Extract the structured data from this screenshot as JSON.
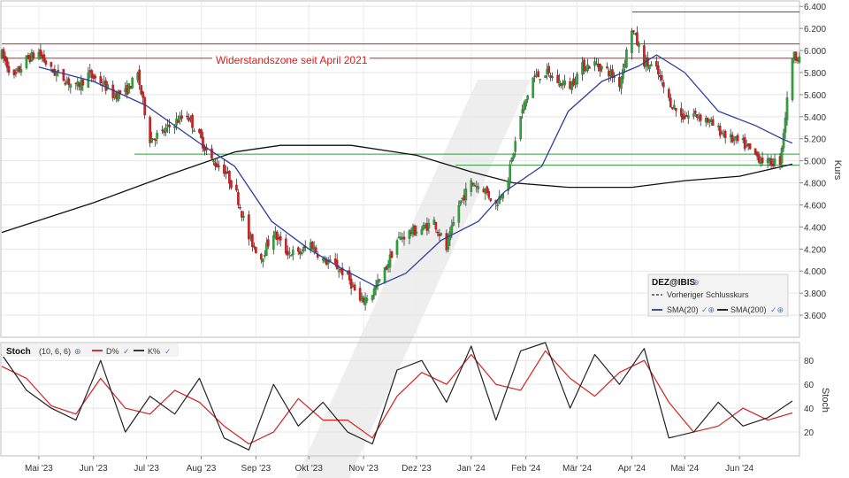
{
  "chart_data": [
    {
      "type": "candlestick",
      "title": "",
      "ylabel": "Kurs",
      "ylim": [
        3.4,
        6.45
      ],
      "yticks": [
        "6.400",
        "6.200",
        "6.000",
        "5.800",
        "5.600",
        "5.400",
        "5.200",
        "5.000",
        "4.800",
        "4.600",
        "4.400",
        "4.200",
        "4.000",
        "3.800",
        "3.600"
      ],
      "x_months": [
        "Mai '23",
        "Jun '23",
        "Jul '23",
        "Aug '23",
        "Sep '23",
        "Okt '23",
        "Nov '23",
        "Dez '23",
        "Jan '24",
        "Feb '24",
        "Mär '24",
        "Apr '24",
        "Mai '24",
        "Jun '24"
      ],
      "x_range": [
        "2023-04-10",
        "2024-07-05"
      ],
      "annotation": "Widerstandszone seit April 2021",
      "horizontal_lines": [
        {
          "y": 6.35,
          "color": "#d42020"
        },
        {
          "y": 6.06,
          "color": "#d42020"
        },
        {
          "y": 5.93,
          "color": "#d42020"
        },
        {
          "y": 5.06,
          "color": "#2e9a3a"
        },
        {
          "y": 4.96,
          "color": "#2e9a3a"
        }
      ],
      "legend": {
        "symbol": "DEZ@IBIS",
        "items": [
          "Vorheriger Schlusskurs",
          "SMA(20)",
          "SMA(200)"
        ]
      },
      "closes": [
        [
          "2023-04-10",
          5.96
        ],
        [
          "2023-04-17",
          5.75
        ],
        [
          "2023-04-24",
          5.92
        ],
        [
          "2023-05-01",
          5.98
        ],
        [
          "2023-05-08",
          5.82
        ],
        [
          "2023-05-15",
          5.75
        ],
        [
          "2023-05-22",
          5.66
        ],
        [
          "2023-05-29",
          5.78
        ],
        [
          "2023-06-05",
          5.72
        ],
        [
          "2023-06-12",
          5.6
        ],
        [
          "2023-06-19",
          5.62
        ],
        [
          "2023-06-26",
          5.78
        ],
        [
          "2023-07-03",
          5.2
        ],
        [
          "2023-07-10",
          5.25
        ],
        [
          "2023-07-17",
          5.35
        ],
        [
          "2023-07-24",
          5.42
        ],
        [
          "2023-07-31",
          5.22
        ],
        [
          "2023-08-07",
          5.0
        ],
        [
          "2023-08-14",
          4.92
        ],
        [
          "2023-08-21",
          4.7
        ],
        [
          "2023-08-28",
          4.3
        ],
        [
          "2023-09-04",
          4.12
        ],
        [
          "2023-09-11",
          4.35
        ],
        [
          "2023-09-18",
          4.18
        ],
        [
          "2023-09-25",
          4.15
        ],
        [
          "2023-10-02",
          4.25
        ],
        [
          "2023-10-09",
          4.1
        ],
        [
          "2023-10-16",
          4.05
        ],
        [
          "2023-10-23",
          3.95
        ],
        [
          "2023-10-30",
          3.72
        ],
        [
          "2023-11-06",
          3.8
        ],
        [
          "2023-11-13",
          4.0
        ],
        [
          "2023-11-20",
          4.28
        ],
        [
          "2023-11-27",
          4.35
        ],
        [
          "2023-12-04",
          4.38
        ],
        [
          "2023-12-11",
          4.45
        ],
        [
          "2023-12-18",
          4.2
        ],
        [
          "2023-12-25",
          4.6
        ],
        [
          "2024-01-01",
          4.8
        ],
        [
          "2024-01-08",
          4.75
        ],
        [
          "2024-01-15",
          4.6
        ],
        [
          "2024-01-22",
          4.85
        ],
        [
          "2024-01-29",
          5.4
        ],
        [
          "2024-02-05",
          5.75
        ],
        [
          "2024-02-12",
          5.8
        ],
        [
          "2024-02-19",
          5.72
        ],
        [
          "2024-02-26",
          5.68
        ],
        [
          "2024-03-04",
          5.85
        ],
        [
          "2024-03-11",
          5.88
        ],
        [
          "2024-03-18",
          5.82
        ],
        [
          "2024-03-25",
          5.7
        ],
        [
          "2024-04-01",
          6.2
        ],
        [
          "2024-04-08",
          5.9
        ],
        [
          "2024-04-15",
          5.82
        ],
        [
          "2024-04-22",
          5.55
        ],
        [
          "2024-04-29",
          5.4
        ],
        [
          "2024-05-06",
          5.42
        ],
        [
          "2024-05-13",
          5.38
        ],
        [
          "2024-05-20",
          5.28
        ],
        [
          "2024-05-27",
          5.2
        ],
        [
          "2024-06-03",
          5.15
        ],
        [
          "2024-06-10",
          5.05
        ],
        [
          "2024-06-17",
          4.98
        ],
        [
          "2024-06-24",
          5.0
        ],
        [
          "2024-07-01",
          5.95
        ]
      ],
      "sma20": [
        [
          "2023-05-01",
          5.85
        ],
        [
          "2023-06-01",
          5.72
        ],
        [
          "2023-07-01",
          5.5
        ],
        [
          "2023-08-01",
          5.15
        ],
        [
          "2023-08-20",
          4.95
        ],
        [
          "2023-09-10",
          4.45
        ],
        [
          "2023-10-01",
          4.2
        ],
        [
          "2023-10-20",
          4.02
        ],
        [
          "2023-11-08",
          3.86
        ],
        [
          "2023-11-25",
          3.98
        ],
        [
          "2023-12-15",
          4.28
        ],
        [
          "2024-01-05",
          4.45
        ],
        [
          "2024-01-20",
          4.72
        ],
        [
          "2024-02-10",
          4.95
        ],
        [
          "2024-02-25",
          5.45
        ],
        [
          "2024-03-15",
          5.72
        ],
        [
          "2024-04-05",
          5.86
        ],
        [
          "2024-04-15",
          5.96
        ],
        [
          "2024-05-01",
          5.8
        ],
        [
          "2024-05-20",
          5.45
        ],
        [
          "2024-06-10",
          5.32
        ],
        [
          "2024-06-25",
          5.2
        ],
        [
          "2024-07-01",
          5.16
        ]
      ],
      "sma200": [
        [
          "2023-04-10",
          4.35
        ],
        [
          "2023-06-01",
          4.62
        ],
        [
          "2023-07-15",
          4.88
        ],
        [
          "2023-08-20",
          5.08
        ],
        [
          "2023-09-15",
          5.14
        ],
        [
          "2023-10-25",
          5.14
        ],
        [
          "2023-12-01",
          5.05
        ],
        [
          "2024-01-01",
          4.9
        ],
        [
          "2024-01-25",
          4.8
        ],
        [
          "2024-02-25",
          4.76
        ],
        [
          "2024-04-01",
          4.76
        ],
        [
          "2024-05-01",
          4.82
        ],
        [
          "2024-06-01",
          4.86
        ],
        [
          "2024-07-01",
          4.97
        ]
      ]
    },
    {
      "type": "line",
      "title": "Stoch",
      "params": "(10, 6, 6)",
      "ylabel": "Stoch",
      "ylim": [
        0,
        95
      ],
      "yticks": [
        "80",
        "60",
        "40",
        "20"
      ],
      "series": [
        {
          "name": "D%",
          "color": "#d42020",
          "points": [
            [
              "2023-04-10",
              75
            ],
            [
              "2023-04-24",
              65
            ],
            [
              "2023-05-08",
              42
            ],
            [
              "2023-05-22",
              35
            ],
            [
              "2023-06-05",
              65
            ],
            [
              "2023-06-19",
              40
            ],
            [
              "2023-07-03",
              35
            ],
            [
              "2023-07-17",
              55
            ],
            [
              "2023-07-31",
              45
            ],
            [
              "2023-08-14",
              25
            ],
            [
              "2023-08-28",
              10
            ],
            [
              "2023-09-11",
              20
            ],
            [
              "2023-09-25",
              48
            ],
            [
              "2023-10-09",
              30
            ],
            [
              "2023-10-23",
              30
            ],
            [
              "2023-11-06",
              15
            ],
            [
              "2023-11-20",
              50
            ],
            [
              "2023-12-04",
              70
            ],
            [
              "2023-12-18",
              60
            ],
            [
              "2024-01-01",
              85
            ],
            [
              "2024-01-15",
              60
            ],
            [
              "2024-01-29",
              55
            ],
            [
              "2024-02-12",
              88
            ],
            [
              "2024-02-26",
              65
            ],
            [
              "2024-03-11",
              50
            ],
            [
              "2024-03-25",
              70
            ],
            [
              "2024-04-08",
              80
            ],
            [
              "2024-04-22",
              45
            ],
            [
              "2024-05-06",
              20
            ],
            [
              "2024-05-20",
              25
            ],
            [
              "2024-06-03",
              40
            ],
            [
              "2024-06-17",
              30
            ],
            [
              "2024-07-01",
              36
            ]
          ]
        },
        {
          "name": "K%",
          "color": "#222222",
          "points": [
            [
              "2023-04-10",
              85
            ],
            [
              "2023-04-24",
              55
            ],
            [
              "2023-05-08",
              40
            ],
            [
              "2023-05-22",
              30
            ],
            [
              "2023-06-05",
              80
            ],
            [
              "2023-06-19",
              20
            ],
            [
              "2023-07-03",
              50
            ],
            [
              "2023-07-17",
              35
            ],
            [
              "2023-07-31",
              65
            ],
            [
              "2023-08-14",
              15
            ],
            [
              "2023-08-28",
              5
            ],
            [
              "2023-09-11",
              60
            ],
            [
              "2023-09-25",
              25
            ],
            [
              "2023-10-09",
              45
            ],
            [
              "2023-10-23",
              20
            ],
            [
              "2023-11-06",
              10
            ],
            [
              "2023-11-20",
              72
            ],
            [
              "2023-12-04",
              80
            ],
            [
              "2023-12-18",
              45
            ],
            [
              "2024-01-01",
              92
            ],
            [
              "2024-01-15",
              30
            ],
            [
              "2024-01-29",
              88
            ],
            [
              "2024-02-12",
              95
            ],
            [
              "2024-02-26",
              40
            ],
            [
              "2024-03-11",
              85
            ],
            [
              "2024-03-25",
              60
            ],
            [
              "2024-04-08",
              90
            ],
            [
              "2024-04-22",
              15
            ],
            [
              "2024-05-06",
              20
            ],
            [
              "2024-05-20",
              45
            ],
            [
              "2024-06-03",
              25
            ],
            [
              "2024-06-17",
              32
            ],
            [
              "2024-07-01",
              46
            ]
          ]
        }
      ]
    }
  ]
}
